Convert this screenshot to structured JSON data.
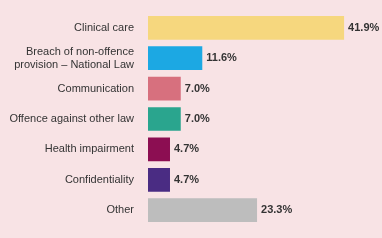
{
  "chart_data": {
    "type": "bar",
    "orientation": "horizontal",
    "categories": [
      "Clinical care",
      "Breach of non-offence provision – National Law",
      "Communication",
      "Offence against other law",
      "Health impairment",
      "Confidentiality",
      "Other"
    ],
    "values": [
      41.9,
      11.6,
      7.0,
      7.0,
      4.7,
      4.7,
      23.3
    ],
    "value_labels": [
      "41.9%",
      "11.6%",
      "7.0%",
      "7.0%",
      "4.7%",
      "4.7%",
      "23.3%"
    ],
    "colors": [
      "#f6d77e",
      "#1ca8e3",
      "#d7707e",
      "#2aa58e",
      "#8c0e52",
      "#4a2c83",
      "#bdbdbd"
    ],
    "xlim": [
      0,
      50
    ],
    "data_labels": true,
    "grid": false,
    "tick_labels": "y"
  }
}
